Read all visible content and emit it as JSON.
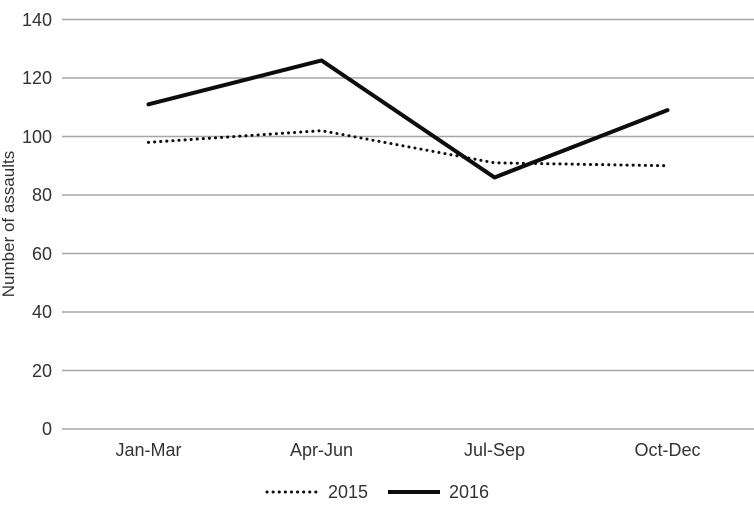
{
  "chart_data": {
    "type": "line",
    "title": "",
    "xlabel": "",
    "ylabel": "Number of assaults",
    "categories": [
      "Jan-Mar",
      "Apr-Jun",
      "Jul-Sep",
      "Oct-Dec"
    ],
    "series": [
      {
        "name": "2015",
        "values": [
          98,
          102,
          91,
          90
        ],
        "line_style": "dotted",
        "color": "#0d0d0d"
      },
      {
        "name": "2016",
        "values": [
          111,
          126,
          86,
          109
        ],
        "line_style": "solid",
        "color": "#0d0d0d"
      }
    ],
    "ylim": [
      0,
      140
    ],
    "yticks": [
      0,
      20,
      40,
      60,
      80,
      100,
      120,
      140
    ],
    "grid": "horizontal",
    "gridline_color": "#a6a6a6",
    "text_color": "#333333",
    "background_color": "#ffffff",
    "legend_position": "bottom-center"
  }
}
